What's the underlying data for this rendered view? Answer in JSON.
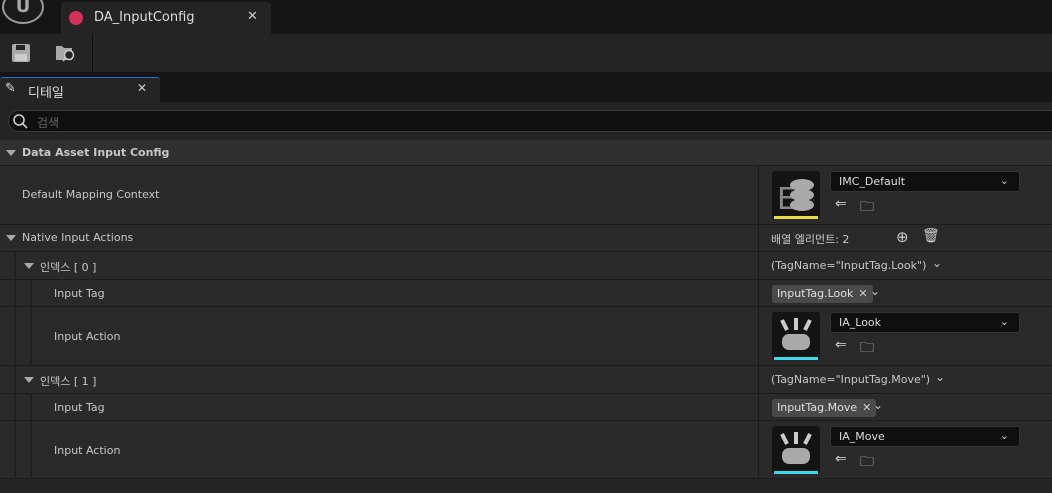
{
  "document_tab": {
    "title": "DA_InputConfig",
    "icon": "data-asset-icon"
  },
  "toolbar": {
    "save": "save-icon",
    "browse": "browse-icon"
  },
  "details_tab": {
    "title": "디테일"
  },
  "search": {
    "placeholder": "검색"
  },
  "category": {
    "title": "Data Asset Input Config"
  },
  "default_mapping": {
    "label": "Default Mapping Context",
    "value": "IMC_Default",
    "accent": "#e8e040"
  },
  "native_actions": {
    "label": "Native Input Actions",
    "count_text": "배열 엘리먼트: 2"
  },
  "items": [
    {
      "index_label": "인덱스 [ 0 ]",
      "summary": "(TagName=\"InputTag.Look\")",
      "tag_label": "Input Tag",
      "tag_value": "InputTag.Look",
      "action_label": "Input Action",
      "action_value": "IA_Look",
      "accent": "#40d8e8"
    },
    {
      "index_label": "인덱스 [ 1 ]",
      "summary": "(TagName=\"InputTag.Move\")",
      "tag_label": "Input Tag",
      "tag_value": "InputTag.Move",
      "action_label": "Input Action",
      "action_value": "IA_Move",
      "accent": "#40d8e8"
    }
  ]
}
